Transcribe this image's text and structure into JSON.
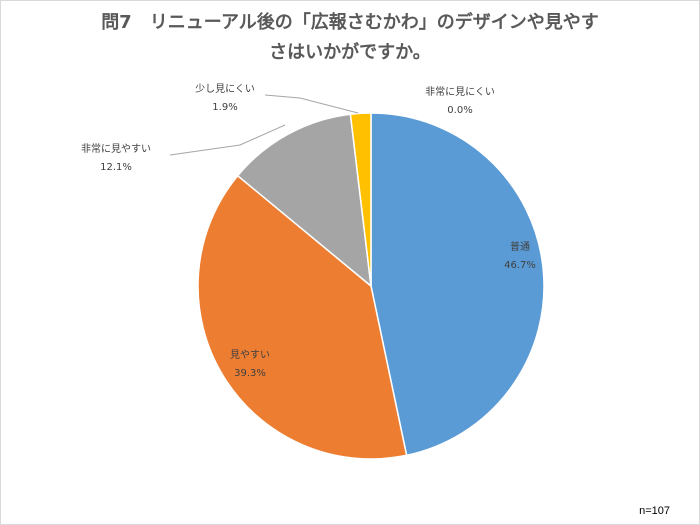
{
  "chart_data": {
    "type": "pie",
    "title_line1": "問7　リニューアル後の「広報さむかわ」のデザインや見やす",
    "title_line2": "さはいかがですか。",
    "note": "n=107",
    "slices": [
      {
        "label": "普通",
        "value": 46.7,
        "value_text": "46.7%",
        "color": "#5b9bd5"
      },
      {
        "label": "見やすい",
        "value": 39.3,
        "value_text": "39.3%",
        "color": "#ed7d31"
      },
      {
        "label": "非常に見やすい",
        "value": 12.1,
        "value_text": "12.1%",
        "color": "#a5a5a5"
      },
      {
        "label": "少し見にくい",
        "value": 1.9,
        "value_text": "1.9%",
        "color": "#ffc000"
      },
      {
        "label": "非常に見にくい",
        "value": 0.0,
        "value_text": "0.0%",
        "color": "#4472c4"
      }
    ]
  }
}
